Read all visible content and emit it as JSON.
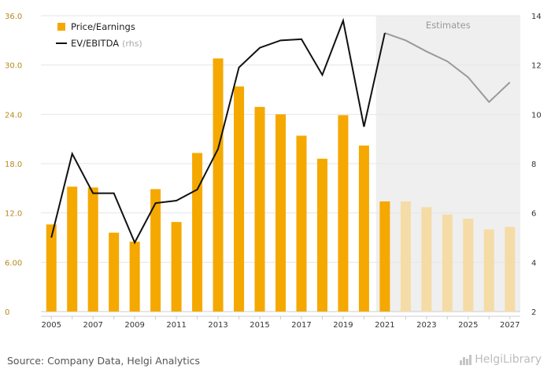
{
  "chart_data": {
    "type": "bar+line",
    "title": "",
    "categories": [
      "2005",
      "2006",
      "2007",
      "2008",
      "2009",
      "2010",
      "2011",
      "2012",
      "2013",
      "2014",
      "2015",
      "2016",
      "2017",
      "2018",
      "2019",
      "2020",
      "2021",
      "2022",
      "2023",
      "2024",
      "2025",
      "2026",
      "2027"
    ],
    "x_tick_labels": [
      "2005",
      "2007",
      "2009",
      "2011",
      "2013",
      "2015",
      "2017",
      "2019",
      "2021",
      "2023",
      "2025",
      "2027"
    ],
    "left_axis": {
      "ylim": [
        0,
        36
      ],
      "ticks": [
        "0",
        "6.00",
        "12.0",
        "18.0",
        "24.0",
        "30.0",
        "36.0"
      ]
    },
    "right_axis": {
      "ylim": [
        2,
        14
      ],
      "ticks": [
        "2",
        "4",
        "6",
        "8",
        "10",
        "12",
        "14"
      ],
      "note": "(rhs)"
    },
    "series": [
      {
        "name": "Price/Earnings",
        "kind": "bar",
        "axis": "left",
        "values": [
          10.6,
          15.2,
          15.1,
          9.6,
          8.5,
          14.9,
          10.9,
          19.3,
          30.8,
          27.4,
          24.9,
          24.0,
          21.4,
          18.6,
          23.9,
          20.2,
          13.4,
          13.4,
          12.7,
          11.8,
          11.3,
          10.0,
          10.3
        ]
      },
      {
        "name": "EV/EBITDA",
        "kind": "line",
        "axis": "right",
        "values": [
          5.0,
          8.4,
          6.8,
          6.8,
          4.8,
          6.4,
          6.5,
          6.95,
          8.6,
          11.9,
          12.7,
          13.0,
          13.05,
          11.6,
          13.8,
          9.5,
          13.3,
          13.0,
          12.55,
          12.15,
          11.5,
          10.5,
          11.3
        ]
      }
    ],
    "estimates_from": "2021",
    "estimates_label": "Estimates",
    "colors": {
      "bar": "#f5a800",
      "bar_estimate": "#f5dca6",
      "line": "#111111",
      "line_estimate": "#9a9a9a",
      "estimate_bg": "#efefef",
      "left_axis_text": "#b58a1c"
    },
    "grid": true,
    "legend_placement": "top-left"
  },
  "footer": {
    "source": "Source: Company Data, Helgi Analytics",
    "brand": "HelgiLibrary"
  }
}
